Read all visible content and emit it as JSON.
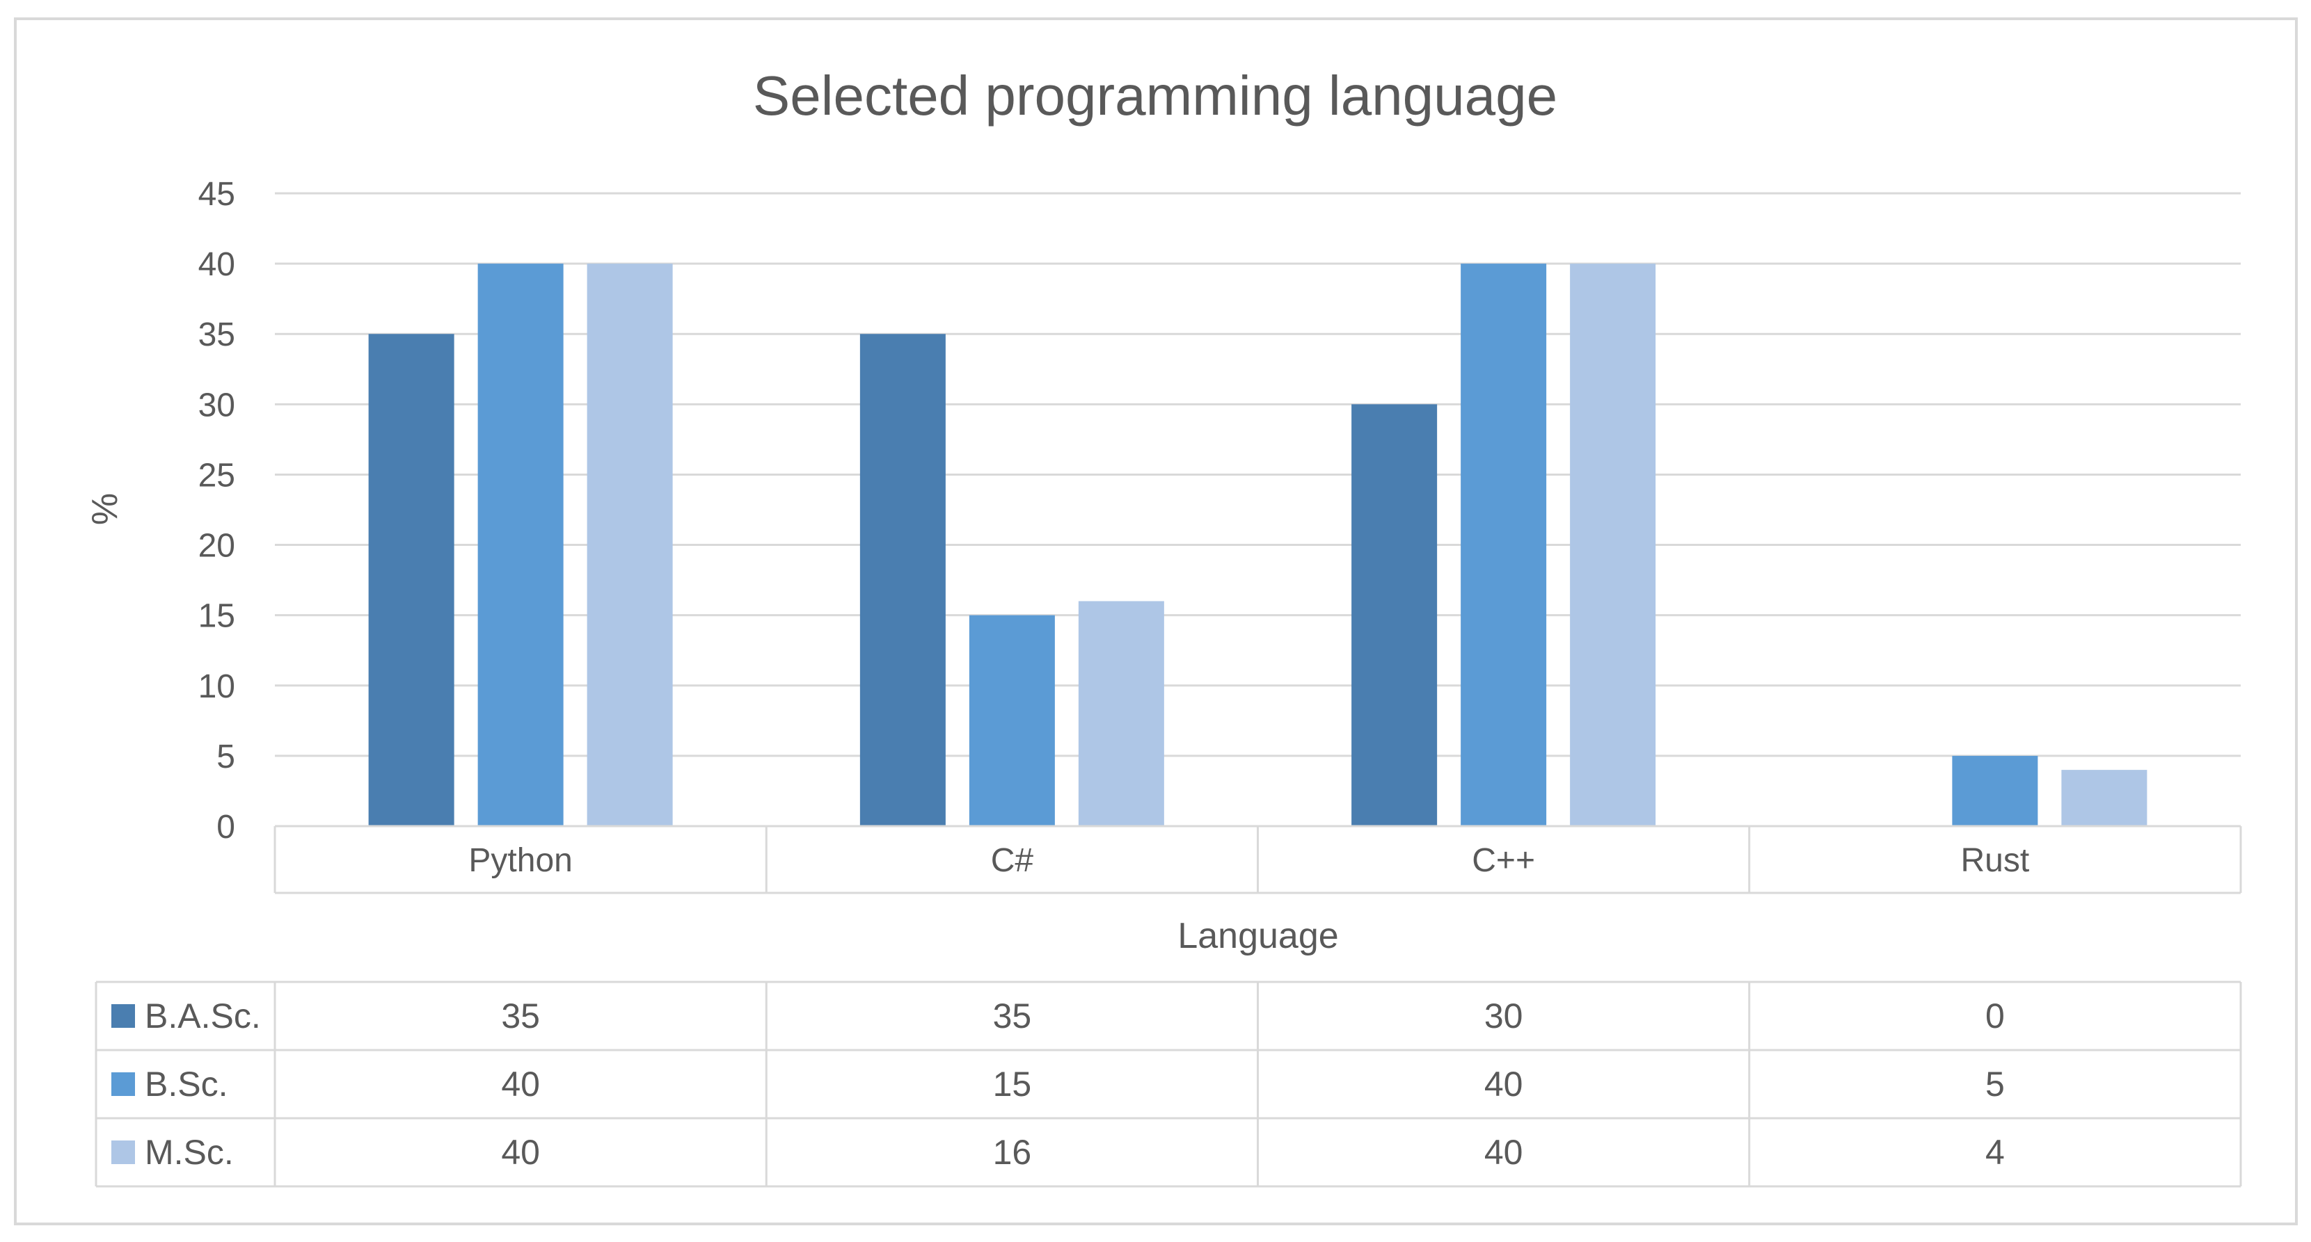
{
  "chart_data": {
    "type": "bar",
    "title": "Selected programming language",
    "xlabel": "Language",
    "ylabel": "%",
    "ylim": [
      0,
      45
    ],
    "yticks": [
      0,
      5,
      10,
      15,
      20,
      25,
      30,
      35,
      40,
      45
    ],
    "grid": true,
    "legend": "data-table-bottom",
    "categories": [
      "Python",
      "C#",
      "C++",
      "Rust"
    ],
    "series": [
      {
        "name": "B.A.Sc.",
        "color": "#4a7eb0",
        "values": [
          35,
          35,
          30,
          0
        ]
      },
      {
        "name": "B.Sc.",
        "color": "#5b9bd5",
        "values": [
          40,
          15,
          40,
          5
        ]
      },
      {
        "name": "M.Sc.",
        "color": "#aec6e6",
        "values": [
          40,
          16,
          40,
          4
        ]
      }
    ]
  }
}
